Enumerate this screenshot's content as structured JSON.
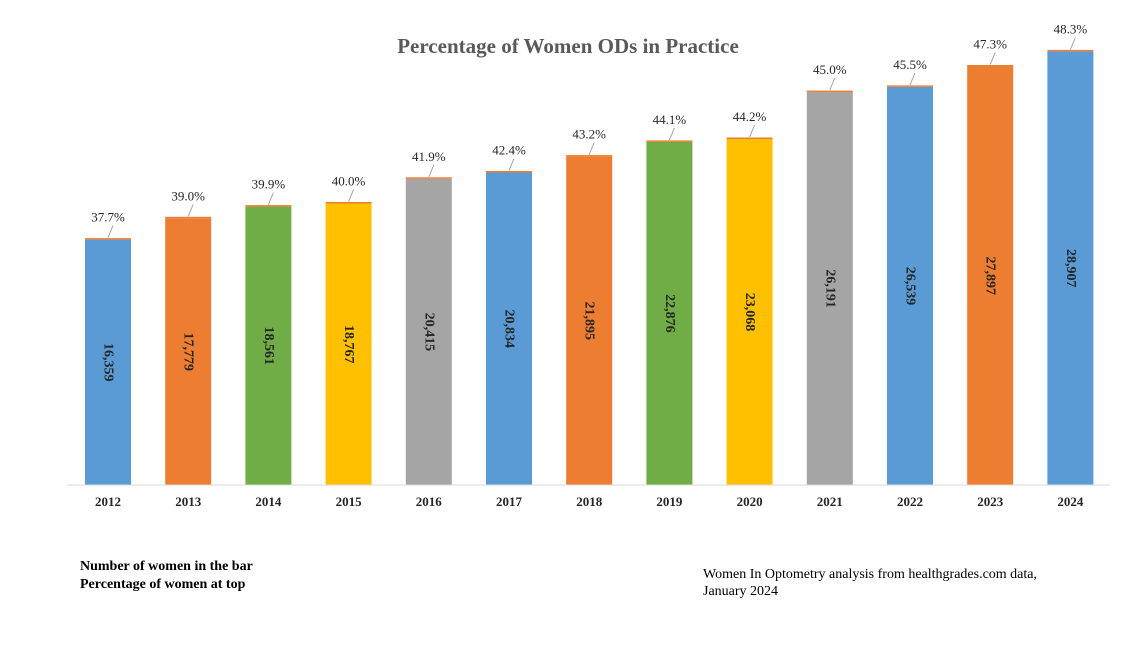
{
  "chart_data": {
    "type": "bar",
    "title": "Percentage of Women ODs in Practice",
    "categories": [
      "2012",
      "2013",
      "2014",
      "2015",
      "2016",
      "2017",
      "2018",
      "2019",
      "2020",
      "2021",
      "2022",
      "2023",
      "2024"
    ],
    "values": [
      16359,
      17779,
      18561,
      18767,
      20415,
      20834,
      21895,
      22876,
      23068,
      26191,
      26539,
      27897,
      28907
    ],
    "value_labels": [
      "16,359",
      "17,779",
      "18,561",
      "18,767",
      "20,415",
      "20,834",
      "21,895",
      "22,876",
      "23,068",
      "26,191",
      "26,539",
      "27,897",
      "28,907"
    ],
    "percent_labels": [
      "37.7%",
      "39.0%",
      "39.9%",
      "40.0%",
      "41.9%",
      "42.4%",
      "43.2%",
      "44.1%",
      "44.2%",
      "45.0%",
      "45.5%",
      "47.3%",
      "48.3%"
    ],
    "colors": [
      "#5B9BD5",
      "#ED7D31",
      "#70AD47",
      "#FFC000",
      "#A5A5A5",
      "#5B9BD5",
      "#ED7D31",
      "#70AD47",
      "#FFC000",
      "#A5A5A5",
      "#5B9BD5",
      "#ED7D31",
      "#5B9BD5"
    ],
    "cap_color": "#ED7D31",
    "ylim": [
      0,
      30000
    ],
    "grid": false,
    "legend": "none",
    "xlabel": "",
    "ylabel": ""
  },
  "notes": {
    "left_line1": "Number of women in the bar",
    "left_line2": "Percentage of women at top",
    "right_line1": "Women In Optometry analysis from healthgrades.com data,",
    "right_line2": "January 2024"
  }
}
